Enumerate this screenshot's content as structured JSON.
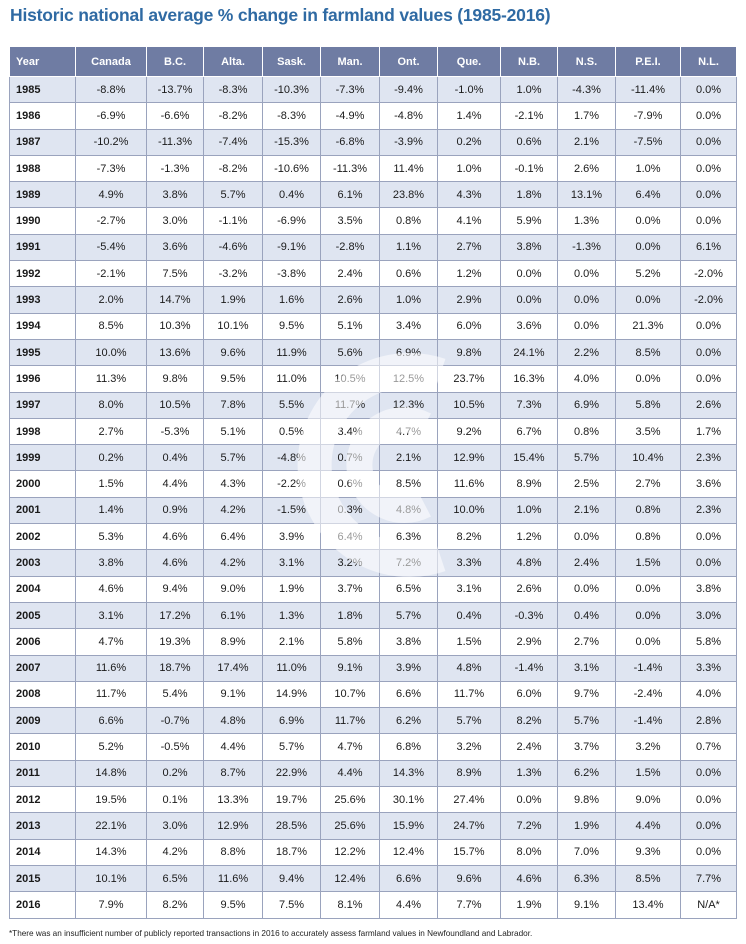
{
  "title": "Historic national average % change in farmland values (1985-2016)",
  "footnote": "*There was an insufficient number of publicly reported transactions in 2016 to accurately assess farmland values in Newfoundland and Labrador.",
  "colors": {
    "header_bg": "#6f7ca3",
    "row_alt_bg": "#dfe5f1",
    "title": "#2f6aa3"
  },
  "chart_data": {
    "type": "table",
    "columns": [
      "Year",
      "Canada",
      "B.C.",
      "Alta.",
      "Sask.",
      "Man.",
      "Ont.",
      "Que.",
      "N.B.",
      "N.S.",
      "P.E.I.",
      "N.L."
    ],
    "rows": [
      [
        "1985",
        "-8.8%",
        "-13.7%",
        "-8.3%",
        "-10.3%",
        "-7.3%",
        "-9.4%",
        "-1.0%",
        "1.0%",
        "-4.3%",
        "-11.4%",
        "0.0%"
      ],
      [
        "1986",
        "-6.9%",
        "-6.6%",
        "-8.2%",
        "-8.3%",
        "-4.9%",
        "-4.8%",
        "1.4%",
        "-2.1%",
        "1.7%",
        "-7.9%",
        "0.0%"
      ],
      [
        "1987",
        "-10.2%",
        "-11.3%",
        "-7.4%",
        "-15.3%",
        "-6.8%",
        "-3.9%",
        "0.2%",
        "0.6%",
        "2.1%",
        "-7.5%",
        "0.0%"
      ],
      [
        "1988",
        "-7.3%",
        "-1.3%",
        "-8.2%",
        "-10.6%",
        "-11.3%",
        "11.4%",
        "1.0%",
        "-0.1%",
        "2.6%",
        "1.0%",
        "0.0%"
      ],
      [
        "1989",
        "4.9%",
        "3.8%",
        "5.7%",
        "0.4%",
        "6.1%",
        "23.8%",
        "4.3%",
        "1.8%",
        "13.1%",
        "6.4%",
        "0.0%"
      ],
      [
        "1990",
        "-2.7%",
        "3.0%",
        "-1.1%",
        "-6.9%",
        "3.5%",
        "0.8%",
        "4.1%",
        "5.9%",
        "1.3%",
        "0.0%",
        "0.0%"
      ],
      [
        "1991",
        "-5.4%",
        "3.6%",
        "-4.6%",
        "-9.1%",
        "-2.8%",
        "1.1%",
        "2.7%",
        "3.8%",
        "-1.3%",
        "0.0%",
        "6.1%"
      ],
      [
        "1992",
        "-2.1%",
        "7.5%",
        "-3.2%",
        "-3.8%",
        "2.4%",
        "0.6%",
        "1.2%",
        "0.0%",
        "0.0%",
        "5.2%",
        "-2.0%"
      ],
      [
        "1993",
        "2.0%",
        "14.7%",
        "1.9%",
        "1.6%",
        "2.6%",
        "1.0%",
        "2.9%",
        "0.0%",
        "0.0%",
        "0.0%",
        "-2.0%"
      ],
      [
        "1994",
        "8.5%",
        "10.3%",
        "10.1%",
        "9.5%",
        "5.1%",
        "3.4%",
        "6.0%",
        "3.6%",
        "0.0%",
        "21.3%",
        "0.0%"
      ],
      [
        "1995",
        "10.0%",
        "13.6%",
        "9.6%",
        "11.9%",
        "5.6%",
        "6.9%",
        "9.8%",
        "24.1%",
        "2.2%",
        "8.5%",
        "0.0%"
      ],
      [
        "1996",
        "11.3%",
        "9.8%",
        "9.5%",
        "11.0%",
        "10.5%",
        "12.5%",
        "23.7%",
        "16.3%",
        "4.0%",
        "0.0%",
        "0.0%"
      ],
      [
        "1997",
        "8.0%",
        "10.5%",
        "7.8%",
        "5.5%",
        "11.7%",
        "12.3%",
        "10.5%",
        "7.3%",
        "6.9%",
        "5.8%",
        "2.6%"
      ],
      [
        "1998",
        "2.7%",
        "-5.3%",
        "5.1%",
        "0.5%",
        "3.4%",
        "4.7%",
        "9.2%",
        "6.7%",
        "0.8%",
        "3.5%",
        "1.7%"
      ],
      [
        "1999",
        "0.2%",
        "0.4%",
        "5.7%",
        "-4.8%",
        "0.7%",
        "2.1%",
        "12.9%",
        "15.4%",
        "5.7%",
        "10.4%",
        "2.3%"
      ],
      [
        "2000",
        "1.5%",
        "4.4%",
        "4.3%",
        "-2.2%",
        "0.6%",
        "8.5%",
        "11.6%",
        "8.9%",
        "2.5%",
        "2.7%",
        "3.6%"
      ],
      [
        "2001",
        "1.4%",
        "0.9%",
        "4.2%",
        "-1.5%",
        "0.3%",
        "4.8%",
        "10.0%",
        "1.0%",
        "2.1%",
        "0.8%",
        "2.3%"
      ],
      [
        "2002",
        "5.3%",
        "4.6%",
        "6.4%",
        "3.9%",
        "6.4%",
        "6.3%",
        "8.2%",
        "1.2%",
        "0.0%",
        "0.8%",
        "0.0%"
      ],
      [
        "2003",
        "3.8%",
        "4.6%",
        "4.2%",
        "3.1%",
        "3.2%",
        "7.2%",
        "3.3%",
        "4.8%",
        "2.4%",
        "1.5%",
        "0.0%"
      ],
      [
        "2004",
        "4.6%",
        "9.4%",
        "9.0%",
        "1.9%",
        "3.7%",
        "6.5%",
        "3.1%",
        "2.6%",
        "0.0%",
        "0.0%",
        "3.8%"
      ],
      [
        "2005",
        "3.1%",
        "17.2%",
        "6.1%",
        "1.3%",
        "1.8%",
        "5.7%",
        "0.4%",
        "-0.3%",
        "0.4%",
        "0.0%",
        "3.0%"
      ],
      [
        "2006",
        "4.7%",
        "19.3%",
        "8.9%",
        "2.1%",
        "5.8%",
        "3.8%",
        "1.5%",
        "2.9%",
        "2.7%",
        "0.0%",
        "5.8%"
      ],
      [
        "2007",
        "11.6%",
        "18.7%",
        "17.4%",
        "11.0%",
        "9.1%",
        "3.9%",
        "4.8%",
        "-1.4%",
        "3.1%",
        "-1.4%",
        "3.3%"
      ],
      [
        "2008",
        "11.7%",
        "5.4%",
        "9.1%",
        "14.9%",
        "10.7%",
        "6.6%",
        "11.7%",
        "6.0%",
        "9.7%",
        "-2.4%",
        "4.0%"
      ],
      [
        "2009",
        "6.6%",
        "-0.7%",
        "4.8%",
        "6.9%",
        "11.7%",
        "6.2%",
        "5.7%",
        "8.2%",
        "5.7%",
        "-1.4%",
        "2.8%"
      ],
      [
        "2010",
        "5.2%",
        "-0.5%",
        "4.4%",
        "5.7%",
        "4.7%",
        "6.8%",
        "3.2%",
        "2.4%",
        "3.7%",
        "3.2%",
        "0.7%"
      ],
      [
        "2011",
        "14.8%",
        "0.2%",
        "8.7%",
        "22.9%",
        "4.4%",
        "14.3%",
        "8.9%",
        "1.3%",
        "6.2%",
        "1.5%",
        "0.0%"
      ],
      [
        "2012",
        "19.5%",
        "0.1%",
        "13.3%",
        "19.7%",
        "25.6%",
        "30.1%",
        "27.4%",
        "0.0%",
        "9.8%",
        "9.0%",
        "0.0%"
      ],
      [
        "2013",
        "22.1%",
        "3.0%",
        "12.9%",
        "28.5%",
        "25.6%",
        "15.9%",
        "24.7%",
        "7.2%",
        "1.9%",
        "4.4%",
        "0.0%"
      ],
      [
        "2014",
        "14.3%",
        "4.2%",
        "8.8%",
        "18.7%",
        "12.2%",
        "12.4%",
        "15.7%",
        "8.0%",
        "7.0%",
        "9.3%",
        "0.0%"
      ],
      [
        "2015",
        "10.1%",
        "6.5%",
        "11.6%",
        "9.4%",
        "12.4%",
        "6.6%",
        "9.6%",
        "4.6%",
        "6.3%",
        "8.5%",
        "7.7%"
      ],
      [
        "2016",
        "7.9%",
        "8.2%",
        "9.5%",
        "7.5%",
        "8.1%",
        "4.4%",
        "7.7%",
        "1.9%",
        "9.1%",
        "13.4%",
        "N/A*"
      ]
    ]
  }
}
